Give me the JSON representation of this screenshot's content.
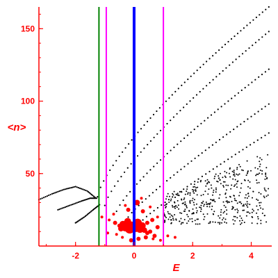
{
  "chart_data": {
    "type": "scatter",
    "title": "",
    "xlabel": "E",
    "ylabel": "<n>",
    "xlim": [
      -3.25,
      4.7
    ],
    "ylim": [
      0,
      165
    ],
    "xticks": [
      -2,
      0,
      2,
      4
    ],
    "yticks": [
      50,
      100,
      150
    ],
    "grid": false,
    "colors": {
      "axis": "#ff0000",
      "points_black": "#000000",
      "points_red": "#ff0000",
      "line_green": "#008000",
      "line_blue": "#0000ff",
      "line_magenta": "#ff00ff"
    },
    "vertical_lines": [
      {
        "x": -1.2,
        "color": "#008000"
      },
      {
        "x": -0.95,
        "color": "#ff00ff"
      },
      {
        "x": 0.0,
        "color": "#0000ff"
      },
      {
        "x": 1.0,
        "color": "#ff00ff"
      }
    ],
    "curves": [
      {
        "name": "",
        "x0": -1.25,
        "y0": 34,
        "x1": 4.6,
        "y1": 165,
        "p": 0.75,
        "n": 55
      },
      {
        "name": "",
        "x0": -1.0,
        "y0": 28,
        "x1": 4.6,
        "y1": 148,
        "p": 0.78,
        "n": 50
      },
      {
        "name": "",
        "x0": -0.6,
        "y0": 24,
        "x1": 4.6,
        "y1": 122,
        "p": 0.82,
        "n": 45
      },
      {
        "name": "",
        "x0": -0.2,
        "y0": 20,
        "x1": 4.6,
        "y1": 98,
        "p": 0.88,
        "n": 40
      },
      {
        "name": "",
        "x0": 0.3,
        "y0": 18,
        "x1": 4.6,
        "y1": 78,
        "p": 0.92,
        "n": 34
      }
    ],
    "left_branches": [
      {
        "xs": [
          -3.25,
          -2.8,
          -2.4,
          -2.0,
          -1.6,
          -1.3
        ],
        "ys": [
          32,
          36,
          39,
          41,
          38,
          33
        ]
      },
      {
        "xs": [
          -2.6,
          -2.2,
          -1.8,
          -1.5,
          -1.25
        ],
        "ys": [
          25,
          28,
          31,
          33,
          33
        ]
      },
      {
        "xs": [
          -2.0,
          -1.7,
          -1.4,
          -1.15
        ],
        "ys": [
          16,
          20,
          25,
          29
        ]
      }
    ],
    "black_cloud": {
      "xrange": [
        1.0,
        4.6
      ],
      "yrange": [
        15,
        65
      ],
      "count": 420
    },
    "red_points": [
      {
        "x": -0.5,
        "y": 14,
        "s": 3
      },
      {
        "x": -0.45,
        "y": 12,
        "s": 4
      },
      {
        "x": -0.38,
        "y": 15,
        "s": 5
      },
      {
        "x": -0.3,
        "y": 13,
        "s": 6
      },
      {
        "x": -0.22,
        "y": 17,
        "s": 5
      },
      {
        "x": -0.15,
        "y": 12,
        "s": 7
      },
      {
        "x": -0.08,
        "y": 14,
        "s": 6
      },
      {
        "x": 0.05,
        "y": 13,
        "s": 7
      },
      {
        "x": 0.12,
        "y": 16,
        "s": 6
      },
      {
        "x": 0.2,
        "y": 12,
        "s": 6
      },
      {
        "x": 0.28,
        "y": 14,
        "s": 5
      },
      {
        "x": 0.35,
        "y": 11,
        "s": 4
      },
      {
        "x": 0.45,
        "y": 16,
        "s": 3
      },
      {
        "x": 0.55,
        "y": 10,
        "s": 3
      },
      {
        "x": 0.62,
        "y": 18,
        "s": 3
      },
      {
        "x": 0.7,
        "y": 7,
        "s": 3
      },
      {
        "x": 0.8,
        "y": 20,
        "s": 2
      },
      {
        "x": 0.1,
        "y": 30,
        "s": 4
      },
      {
        "x": -0.2,
        "y": 25,
        "s": 3
      },
      {
        "x": 0.3,
        "y": 24,
        "s": 3
      },
      {
        "x": -0.7,
        "y": 22,
        "s": 2
      },
      {
        "x": -0.85,
        "y": 18,
        "s": 2
      },
      {
        "x": -0.9,
        "y": 9,
        "s": 2
      },
      {
        "x": -0.6,
        "y": 8,
        "s": 2
      },
      {
        "x": -0.4,
        "y": 6,
        "s": 2
      },
      {
        "x": -0.1,
        "y": 4,
        "s": 3
      },
      {
        "x": 0.15,
        "y": 5,
        "s": 3
      },
      {
        "x": 0.4,
        "y": 6,
        "s": 3
      },
      {
        "x": 0.65,
        "y": 5,
        "s": 2
      },
      {
        "x": 0.9,
        "y": 4,
        "s": 2
      },
      {
        "x": 1.15,
        "y": 7,
        "s": 2
      },
      {
        "x": 1.4,
        "y": 6,
        "s": 2
      },
      {
        "x": -1.1,
        "y": 20,
        "s": 2
      },
      {
        "x": 0.0,
        "y": 36,
        "s": 2
      },
      {
        "x": 0.25,
        "y": 33,
        "s": 2
      },
      {
        "x": -0.3,
        "y": 28,
        "s": 2
      },
      {
        "x": 0.55,
        "y": 27,
        "s": 2
      },
      {
        "x": 0.8,
        "y": 13,
        "s": 3
      },
      {
        "x": -0.65,
        "y": 16,
        "s": 3
      },
      {
        "x": 0.45,
        "y": 9,
        "s": 3
      }
    ]
  }
}
